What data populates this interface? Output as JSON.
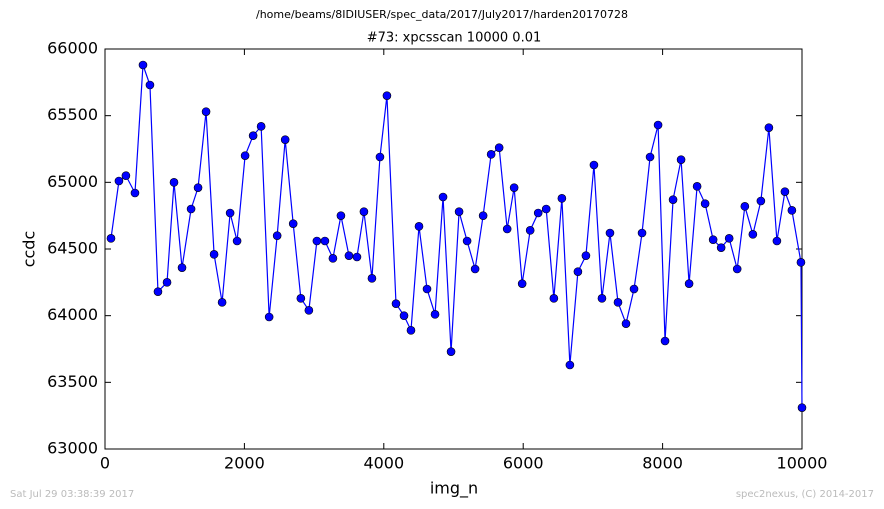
{
  "header": "/home/beams/8IDIUSER/spec_data/2017/July2017/harden20170728",
  "footer": {
    "left": "Sat Jul 29 03:38:39 2017",
    "right": "spec2nexus, (C) 2014-2017"
  },
  "chart_data": {
    "type": "line",
    "title": "#73: xpcsscan 10000 0.01",
    "x_label": "img_n",
    "y_label": "ccdc",
    "xlim": [
      0,
      10000
    ],
    "xticks": [
      0,
      2000,
      4000,
      6000,
      8000,
      10000
    ],
    "ylim": [
      63000,
      66000
    ],
    "yticks": [
      63000,
      63500,
      64000,
      64500,
      65000,
      65500,
      66000
    ],
    "grid": false,
    "series": [
      {
        "name": "ccdc",
        "color": "#0000ff",
        "x": [
          86,
          200,
          300,
          430,
          545,
          645,
          760,
          890,
          990,
          1105,
          1235,
          1335,
          1450,
          1565,
          1680,
          1795,
          1895,
          2010,
          2125,
          2240,
          2355,
          2470,
          2585,
          2700,
          2810,
          2925,
          3040,
          3155,
          3270,
          3385,
          3500,
          3615,
          3715,
          3830,
          3945,
          4045,
          4175,
          4290,
          4390,
          4505,
          4620,
          4735,
          4850,
          4965,
          5080,
          5195,
          5310,
          5425,
          5540,
          5655,
          5770,
          5870,
          5985,
          6100,
          6215,
          6330,
          6440,
          6555,
          6670,
          6785,
          6900,
          7015,
          7130,
          7245,
          7360,
          7475,
          7590,
          7705,
          7820,
          7935,
          8035,
          8150,
          8265,
          8380,
          8495,
          8610,
          8725,
          8840,
          8955,
          9070,
          9180,
          9295,
          9410,
          9525,
          9640,
          9755,
          9855,
          9985,
          10000
        ],
        "values": [
          64580,
          65010,
          65050,
          64920,
          65880,
          65730,
          64180,
          64250,
          65000,
          64360,
          64800,
          64960,
          65530,
          64460,
          64100,
          64770,
          64560,
          65200,
          65350,
          65420,
          63990,
          64600,
          65320,
          64690,
          64130,
          64040,
          64560,
          64560,
          64430,
          64750,
          64450,
          64440,
          64780,
          64280,
          65190,
          65650,
          64090,
          64000,
          63890,
          64670,
          64200,
          64010,
          64890,
          63730,
          64780,
          64560,
          64350,
          64750,
          65210,
          65260,
          64650,
          64960,
          64240,
          64640,
          64770,
          64800,
          64130,
          64880,
          63630,
          64330,
          64450,
          65130,
          64130,
          64620,
          64100,
          63940,
          64200,
          64620,
          65190,
          65430,
          63810,
          64870,
          65170,
          64240,
          64970,
          64840,
          64570,
          64510,
          64580,
          64350,
          64820,
          64610,
          64860,
          65410,
          64560,
          64930,
          64790,
          64400,
          63310
        ]
      }
    ]
  }
}
